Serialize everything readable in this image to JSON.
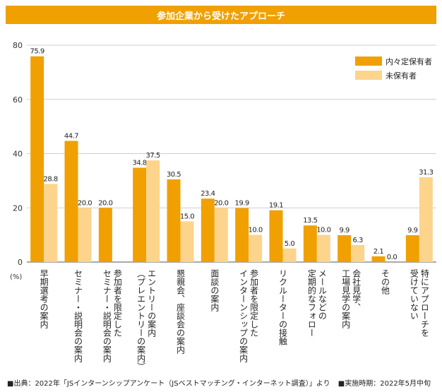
{
  "chart_data": {
    "type": "bar",
    "title": "参加企業から受けたアプローチ",
    "ylabel": "(%)",
    "ylim": [
      0,
      80
    ],
    "yticks": [
      0,
      20,
      40,
      60,
      80
    ],
    "grid": true,
    "legend_position": "top-right",
    "categories": [
      [
        "早期選考の案内"
      ],
      [
        "セミナー・説明会の案内"
      ],
      [
        "参加者を限定した",
        "セミナー・説明会の案内"
      ],
      [
        "エントリーの案内",
        "（プレエントリーの案内）"
      ],
      [
        "懇親会、座談会の案内"
      ],
      [
        "面談の案内"
      ],
      [
        "参加者を限定した",
        "インターンシップの案内"
      ],
      [
        "リクルーターの接触"
      ],
      [
        "メールなどの",
        "定期的なフォロー"
      ],
      [
        "会社見学、",
        "工場見学の案内"
      ],
      [
        "その他"
      ],
      [
        "特にアプローチを",
        "受けていない"
      ]
    ],
    "series": [
      {
        "name": "内々定保有者",
        "color": "#f0a000",
        "values": [
          75.9,
          44.7,
          20.0,
          34.8,
          30.5,
          23.4,
          19.9,
          19.1,
          13.5,
          9.9,
          2.1,
          9.9
        ],
        "labels": [
          "75.9",
          "44.7",
          "20.0",
          "34.8",
          "30.5",
          "23.4",
          "19.9",
          "19.1",
          "13.5",
          "9.9",
          "2.1",
          "9.9"
        ]
      },
      {
        "name": "未保有者",
        "color": "#fcd48c",
        "values": [
          28.8,
          20.0,
          null,
          37.5,
          15.0,
          20.0,
          10.0,
          5.0,
          10.0,
          6.3,
          0.0,
          31.3
        ],
        "labels": [
          "28.8",
          "20.0",
          "",
          "37.5",
          "15.0",
          "20.0",
          "10.0",
          "5.0",
          "10.0",
          "6.3",
          "0.0",
          "31.3"
        ]
      }
    ]
  },
  "footer": {
    "source": "■出典：2022年「JSインターンシップアンケート（JSベストマッチング・インターネット調査）」より",
    "period": "■実施時期：2022年5月中旬"
  }
}
